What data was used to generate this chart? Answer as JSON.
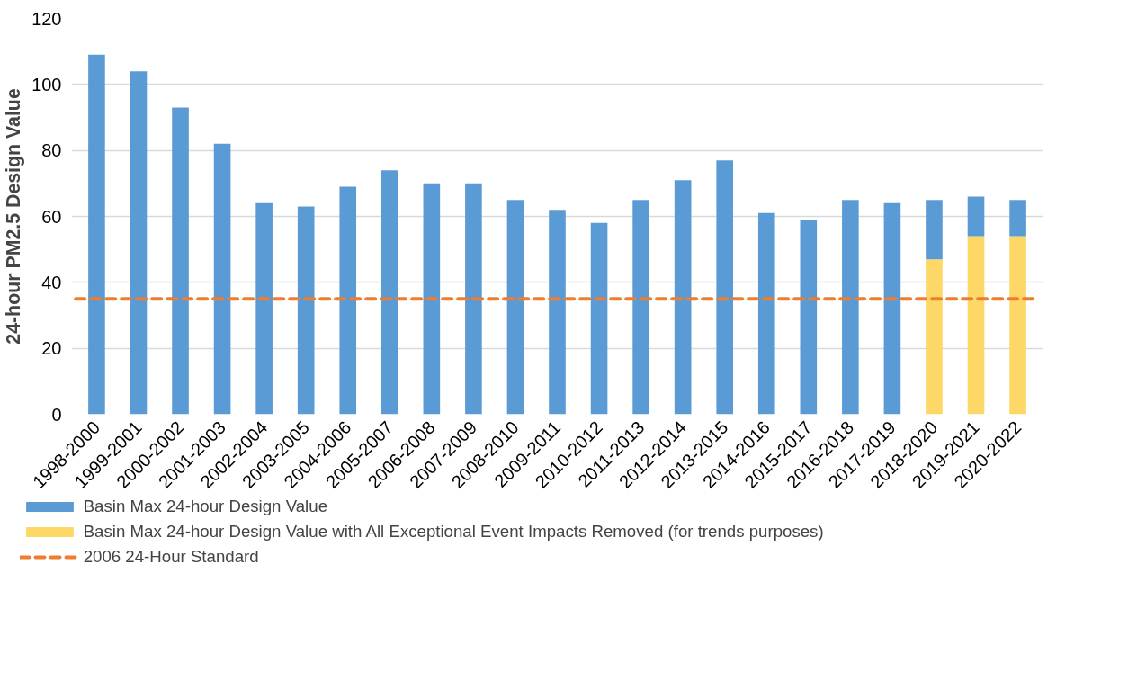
{
  "chart_data": {
    "type": "bar",
    "stacked": true,
    "ylabel": "24-hour PM2.5 Design Value",
    "categories": [
      "1998-2000",
      "1999-2001",
      "2000-2002",
      "2001-2003",
      "2002-2004",
      "2003-2005",
      "2004-2006",
      "2005-2007",
      "2006-2008",
      "2007-2009",
      "2008-2010",
      "2009-2011",
      "2010-2012",
      "2011-2013",
      "2012-2014",
      "2013-2015",
      "2014-2016",
      "2015-2017",
      "2016-2018",
      "2017-2019",
      "2018-2020",
      "2019-2021",
      "2020-2022"
    ],
    "series": [
      {
        "name": "Basin Max 24-hour Design Value with All Exceptional Event Impacts Removed (for trends purposes)",
        "color": "#fdd866",
        "values": [
          null,
          null,
          null,
          null,
          null,
          null,
          null,
          null,
          null,
          null,
          null,
          null,
          null,
          null,
          null,
          null,
          null,
          null,
          null,
          null,
          47,
          54,
          54
        ]
      },
      {
        "name": "Basin Max 24-hour Design Value",
        "color": "#5b9bd5",
        "values": [
          109,
          104,
          93,
          82,
          64,
          63,
          69,
          74,
          70,
          70,
          65,
          62,
          58,
          65,
          71,
          77,
          61,
          59,
          65,
          64,
          18,
          12,
          11
        ]
      }
    ],
    "ref_lines": [
      {
        "axis": "y",
        "value": 35,
        "label": "2006 24-Hour Standard",
        "color": "#ed7d31",
        "line_style": "dashed"
      }
    ],
    "ylim": [
      0,
      120
    ],
    "yticks": [
      0,
      20,
      40,
      60,
      80,
      100,
      120
    ],
    "grid": "y",
    "legend": "bottom"
  }
}
